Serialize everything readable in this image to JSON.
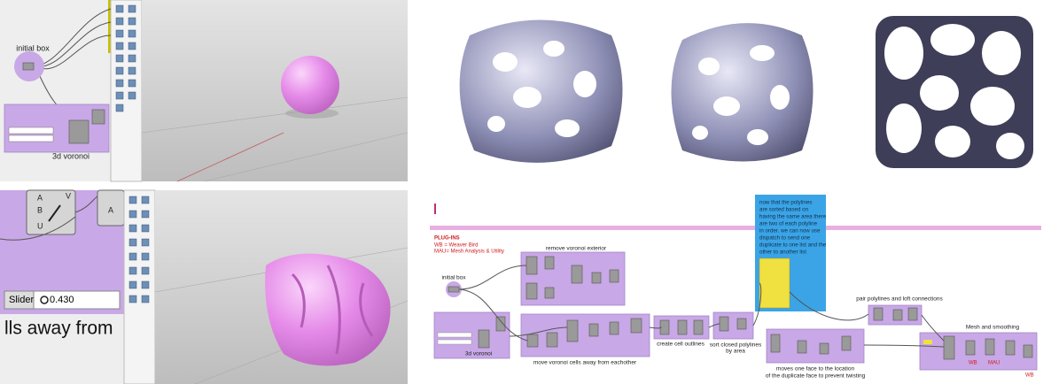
{
  "top_left": {
    "node_label": "initial box",
    "group_label": "3d voronoi"
  },
  "bottom_left": {
    "inputs": [
      "A",
      "B",
      "U"
    ],
    "outputs": [
      "V"
    ],
    "second_input": "A",
    "slider_label": "Slider",
    "slider_value": "0.430",
    "caption": "lls away from"
  },
  "bottom_right": {
    "plugins": {
      "title": "PLUG-INS",
      "lines": [
        "WB = Weaver Bird",
        "MAU= Mesh Analysis & Utility"
      ]
    },
    "groups": [
      "remove voronoi exterior",
      "initial box",
      "3d voronoi",
      "move voronoi cells away from eachother",
      "create cell outlines"
    ],
    "sort_label": [
      "sort closed polylines",
      "by area"
    ],
    "note": [
      "now that the polylines",
      "are sorted based on",
      "having the same area there",
      "are two of each polyline",
      "in order. we can now use",
      "dispatch to send one",
      "duplicate to one list and the",
      "other to another list"
    ],
    "pair_label": "pair polylines and loft connections",
    "move_label": [
      "moves one face to the location",
      "of the duplicate face to prevent twisting"
    ],
    "mesh_label": "Mesh and smoothing",
    "tags": [
      "WB",
      "MAU",
      "WB"
    ]
  }
}
